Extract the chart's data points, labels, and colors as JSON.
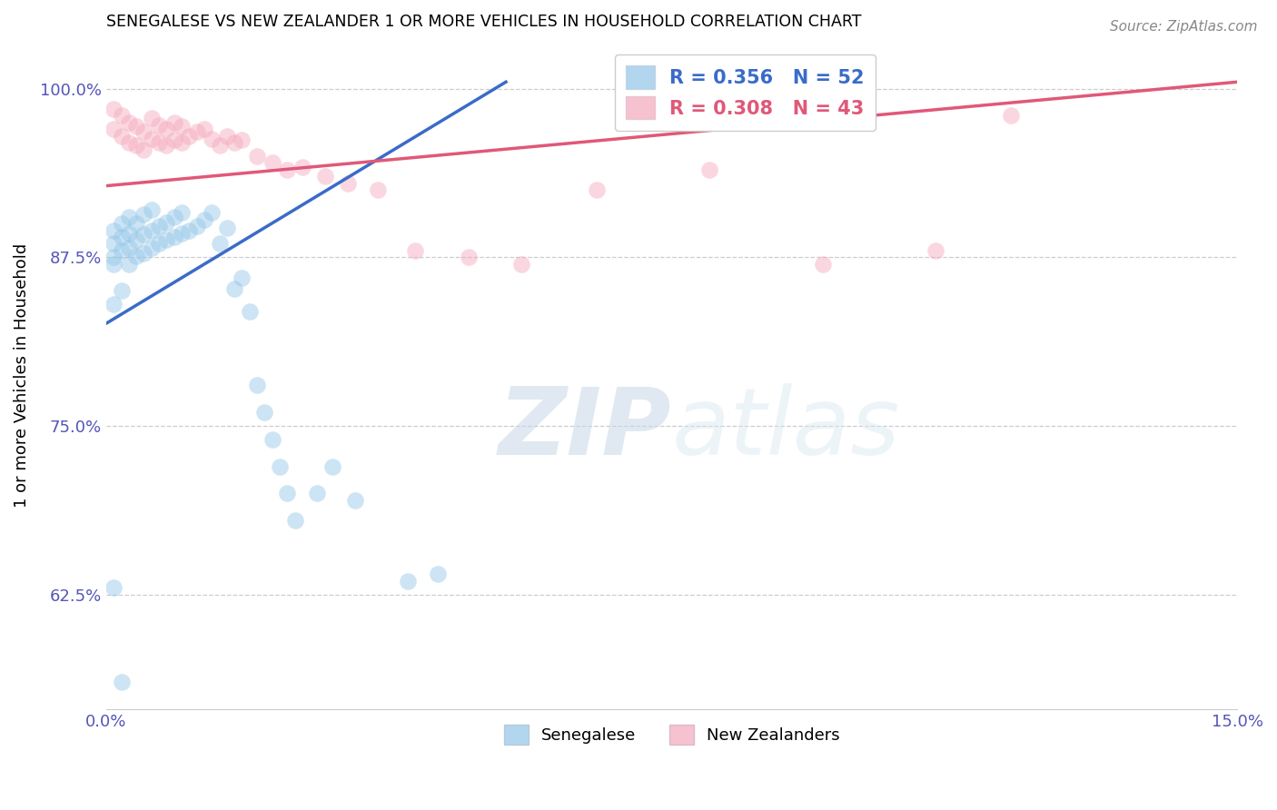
{
  "title": "SENEGALESE VS NEW ZEALANDER 1 OR MORE VEHICLES IN HOUSEHOLD CORRELATION CHART",
  "source": "Source: ZipAtlas.com",
  "ylabel": "1 or more Vehicles in Household",
  "blue_R": 0.356,
  "blue_N": 52,
  "pink_R": 0.308,
  "pink_N": 43,
  "blue_color": "#92C5E8",
  "pink_color": "#F4A8BC",
  "blue_line_color": "#3A6BC8",
  "pink_line_color": "#E05878",
  "xmin": 0.0,
  "xmax": 0.15,
  "ymin": 0.54,
  "ymax": 1.035,
  "yticks": [
    0.625,
    0.75,
    0.875,
    1.0
  ],
  "ytick_labels": [
    "62.5%",
    "75.0%",
    "87.5%",
    "100.0%"
  ],
  "blue_line_x0": 0.0,
  "blue_line_y0": 0.826,
  "blue_line_x1": 0.053,
  "blue_line_y1": 1.005,
  "pink_line_x0": 0.0,
  "pink_line_x1": 0.15,
  "pink_line_y0": 0.928,
  "pink_line_y1": 1.005,
  "blue_x": [
    0.001,
    0.001,
    0.001,
    0.001,
    0.002,
    0.002,
    0.002,
    0.003,
    0.003,
    0.003,
    0.003,
    0.004,
    0.004,
    0.004,
    0.005,
    0.005,
    0.005,
    0.006,
    0.006,
    0.006,
    0.007,
    0.007,
    0.008,
    0.008,
    0.009,
    0.009,
    0.01,
    0.01,
    0.011,
    0.012,
    0.013,
    0.014,
    0.015,
    0.016,
    0.017,
    0.018,
    0.019,
    0.02,
    0.021,
    0.022,
    0.023,
    0.024,
    0.025,
    0.028,
    0.03,
    0.033,
    0.04,
    0.044,
    0.001,
    0.002,
    0.001,
    0.002
  ],
  "blue_y": [
    0.875,
    0.885,
    0.895,
    0.87,
    0.88,
    0.89,
    0.9,
    0.87,
    0.882,
    0.893,
    0.905,
    0.876,
    0.888,
    0.9,
    0.878,
    0.892,
    0.907,
    0.882,
    0.895,
    0.91,
    0.885,
    0.898,
    0.888,
    0.901,
    0.89,
    0.905,
    0.893,
    0.908,
    0.895,
    0.898,
    0.903,
    0.908,
    0.885,
    0.897,
    0.852,
    0.86,
    0.835,
    0.78,
    0.76,
    0.74,
    0.72,
    0.7,
    0.68,
    0.7,
    0.72,
    0.695,
    0.635,
    0.64,
    0.84,
    0.85,
    0.63,
    0.56
  ],
  "pink_x": [
    0.001,
    0.001,
    0.002,
    0.002,
    0.003,
    0.003,
    0.004,
    0.004,
    0.005,
    0.005,
    0.006,
    0.006,
    0.007,
    0.007,
    0.008,
    0.008,
    0.009,
    0.009,
    0.01,
    0.01,
    0.011,
    0.012,
    0.013,
    0.014,
    0.015,
    0.016,
    0.017,
    0.018,
    0.02,
    0.022,
    0.024,
    0.026,
    0.029,
    0.032,
    0.036,
    0.041,
    0.048,
    0.055,
    0.065,
    0.08,
    0.095,
    0.11,
    0.12
  ],
  "pink_y": [
    0.97,
    0.985,
    0.965,
    0.98,
    0.96,
    0.975,
    0.958,
    0.972,
    0.955,
    0.968,
    0.963,
    0.978,
    0.96,
    0.973,
    0.958,
    0.97,
    0.962,
    0.975,
    0.96,
    0.972,
    0.965,
    0.968,
    0.97,
    0.963,
    0.958,
    0.965,
    0.96,
    0.962,
    0.95,
    0.945,
    0.94,
    0.942,
    0.935,
    0.93,
    0.925,
    0.88,
    0.875,
    0.87,
    0.925,
    0.94,
    0.87,
    0.88,
    0.98
  ]
}
